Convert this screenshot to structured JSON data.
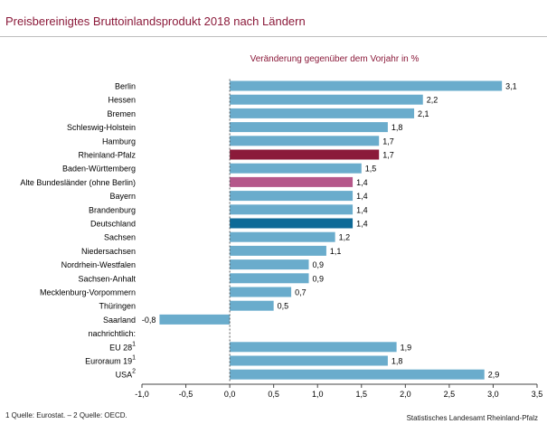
{
  "title": "Preisbereinigtes Bruttoinlandsprodukt 2018 nach Ländern",
  "subtitle": "Veränderung gegenüber dem Vorjahr in %",
  "footnote": "1 Quelle: Eurostat. – 2 Quelle: OECD.",
  "source": "Statistisches Landesamt Rheinland-Pfalz",
  "colors": {
    "default_bar": "#6aaccc",
    "rheinland_pfalz": "#8b1a3a",
    "alte_bundeslaender": "#b5578a",
    "deutschland": "#0e6a97",
    "title_color": "#8b1a3a"
  },
  "chart_data": {
    "type": "bar",
    "orientation": "horizontal",
    "title": "Preisbereinigtes Bruttoinlandsprodukt 2018 nach Ländern",
    "subtitle": "Veränderung gegenüber dem Vorjahr in %",
    "xlim": [
      -1.0,
      3.5
    ],
    "x_ticks": [
      "-1,0",
      "-0,5",
      "0,0",
      "0,5",
      "1,0",
      "1,5",
      "2,0",
      "2,5",
      "3,0",
      "3,5"
    ],
    "x_tick_values": [
      -1.0,
      -0.5,
      0.0,
      0.5,
      1.0,
      1.5,
      2.0,
      2.5,
      3.0,
      3.5
    ],
    "grid": false,
    "legend": "none",
    "categories": [
      {
        "label": "Berlin",
        "sup": "",
        "value": 3.1,
        "value_label": "3,1",
        "color": "default"
      },
      {
        "label": "Hessen",
        "sup": "",
        "value": 2.2,
        "value_label": "2,2",
        "color": "default"
      },
      {
        "label": "Bremen",
        "sup": "",
        "value": 2.1,
        "value_label": "2,1",
        "color": "default"
      },
      {
        "label": "Schleswig-Holstein",
        "sup": "",
        "value": 1.8,
        "value_label": "1,8",
        "color": "default"
      },
      {
        "label": "Hamburg",
        "sup": "",
        "value": 1.7,
        "value_label": "1,7",
        "color": "default"
      },
      {
        "label": "Rheinland-Pfalz",
        "sup": "",
        "value": 1.7,
        "value_label": "1,7",
        "color": "rheinland_pfalz"
      },
      {
        "label": "Baden-Württemberg",
        "sup": "",
        "value": 1.5,
        "value_label": "1,5",
        "color": "default"
      },
      {
        "label": "Alte Bundesländer (ohne Berlin)",
        "sup": "",
        "value": 1.4,
        "value_label": "1,4",
        "color": "alte_bundeslaender"
      },
      {
        "label": "Bayern",
        "sup": "",
        "value": 1.4,
        "value_label": "1,4",
        "color": "default"
      },
      {
        "label": "Brandenburg",
        "sup": "",
        "value": 1.4,
        "value_label": "1,4",
        "color": "default"
      },
      {
        "label": "Deutschland",
        "sup": "",
        "value": 1.4,
        "value_label": "1,4",
        "color": "deutschland"
      },
      {
        "label": "Sachsen",
        "sup": "",
        "value": 1.2,
        "value_label": "1,2",
        "color": "default"
      },
      {
        "label": "Niedersachsen",
        "sup": "",
        "value": 1.1,
        "value_label": "1,1",
        "color": "default"
      },
      {
        "label": "Nordrhein-Westfalen",
        "sup": "",
        "value": 0.9,
        "value_label": "0,9",
        "color": "default"
      },
      {
        "label": "Sachsen-Anhalt",
        "sup": "",
        "value": 0.9,
        "value_label": "0,9",
        "color": "default"
      },
      {
        "label": "Mecklenburg-Vorpommern",
        "sup": "",
        "value": 0.7,
        "value_label": "0,7",
        "color": "default"
      },
      {
        "label": "Thüringen",
        "sup": "",
        "value": 0.5,
        "value_label": "0,5",
        "color": "default"
      },
      {
        "label": "Saarland",
        "sup": "",
        "value": -0.8,
        "value_label": "-0,8",
        "color": "default"
      },
      {
        "label": "nachrichtlich:",
        "sup": "",
        "value": null,
        "value_label": "",
        "color": "default"
      },
      {
        "label": "EU 28",
        "sup": "1",
        "value": 1.9,
        "value_label": "1,9",
        "color": "default"
      },
      {
        "label": "Euroraum 19",
        "sup": "1",
        "value": 1.8,
        "value_label": "1,8",
        "color": "default"
      },
      {
        "label": "USA",
        "sup": "2",
        "value": 2.9,
        "value_label": "2,9",
        "color": "default"
      }
    ]
  }
}
